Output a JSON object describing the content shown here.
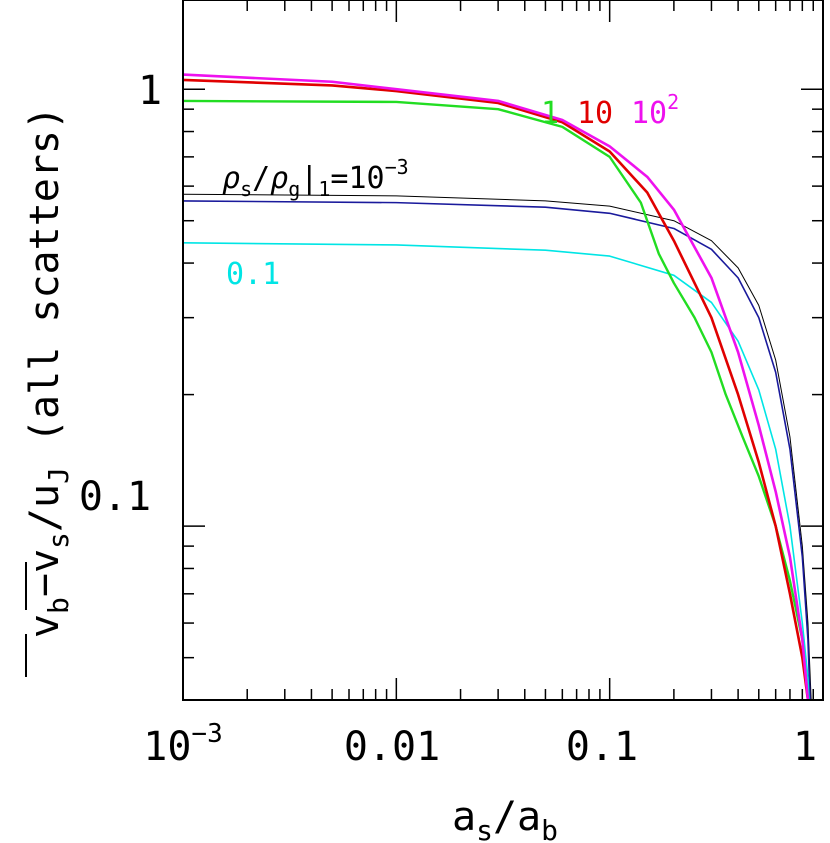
{
  "chart_data": {
    "type": "line",
    "title": "",
    "xlabel": "a_s/a_b",
    "ylabel": "v_b − v_s / u_J (all scatters)",
    "xscale": "log",
    "yscale": "log",
    "xlim": [
      0.001,
      1
    ],
    "ylim": [
      0.04,
      1.6
    ],
    "x_ticks": [
      {
        "value": 0.001,
        "base": "10",
        "exp": "−3"
      },
      {
        "value": 0.01,
        "label": "0.01"
      },
      {
        "value": 0.1,
        "label": "0.1"
      },
      {
        "value": 1,
        "label": "1"
      }
    ],
    "y_ticks": [
      {
        "value": 1,
        "label": "1"
      },
      {
        "value": 0.1,
        "label": "0.1"
      }
    ],
    "y_axis_label": {
      "v_b": "v",
      "b_sub": "b",
      "minus": "−",
      "v_s": "v",
      "s_sub": "s",
      "slash": "/",
      "u": "u",
      "J_sub": "J",
      "paren": "(all scatters)"
    },
    "x_axis_label": {
      "a1": "a",
      "s_sub": "s",
      "slash": "/",
      "a2": "a",
      "b_sub": "b"
    },
    "annotations": {
      "rho_label": {
        "rho1": "ρ",
        "s": "s",
        "slash": "/",
        "rho2": "ρ",
        "g": "g",
        "bar": "|",
        "one": "1",
        "eq": "=",
        "base": "10",
        "exp": "−3"
      },
      "cyan_label": "0.1",
      "green_label": "1",
      "red_label": "10",
      "magenta_base": "10",
      "magenta_exp": "2"
    },
    "series": [
      {
        "key": "black",
        "color": "#000000",
        "width": 1,
        "points": [
          [
            0.001,
            0.575
          ],
          [
            0.01,
            0.57
          ],
          [
            0.05,
            0.555
          ],
          [
            0.1,
            0.54
          ],
          [
            0.2,
            0.5
          ],
          [
            0.3,
            0.45
          ],
          [
            0.4,
            0.39
          ],
          [
            0.5,
            0.32
          ],
          [
            0.6,
            0.24
          ],
          [
            0.7,
            0.16
          ],
          [
            0.8,
            0.09
          ],
          [
            0.85,
            0.06
          ],
          [
            0.88,
            0.04
          ]
        ]
      },
      {
        "key": "blue",
        "color": "#1a1a9c",
        "width": 1.6,
        "points": [
          [
            0.001,
            0.555
          ],
          [
            0.01,
            0.55
          ],
          [
            0.05,
            0.537
          ],
          [
            0.1,
            0.52
          ],
          [
            0.2,
            0.48
          ],
          [
            0.3,
            0.43
          ],
          [
            0.4,
            0.37
          ],
          [
            0.5,
            0.3
          ],
          [
            0.6,
            0.225
          ],
          [
            0.7,
            0.15
          ],
          [
            0.8,
            0.085
          ],
          [
            0.85,
            0.055
          ],
          [
            0.87,
            0.04
          ]
        ]
      },
      {
        "key": "cyan",
        "color": "#00e5e5",
        "width": 1.6,
        "points": [
          [
            0.001,
            0.445
          ],
          [
            0.01,
            0.44
          ],
          [
            0.05,
            0.428
          ],
          [
            0.1,
            0.415
          ],
          [
            0.2,
            0.375
          ],
          [
            0.3,
            0.325
          ],
          [
            0.4,
            0.265
          ],
          [
            0.5,
            0.205
          ],
          [
            0.6,
            0.15
          ],
          [
            0.7,
            0.1
          ],
          [
            0.8,
            0.06
          ],
          [
            0.85,
            0.045
          ],
          [
            0.86,
            0.04
          ]
        ]
      },
      {
        "key": "green",
        "color": "#22dd22",
        "width": 2.4,
        "points": [
          [
            0.001,
            0.94
          ],
          [
            0.01,
            0.935
          ],
          [
            0.03,
            0.9
          ],
          [
            0.06,
            0.82
          ],
          [
            0.1,
            0.7
          ],
          [
            0.14,
            0.55
          ],
          [
            0.17,
            0.42
          ],
          [
            0.2,
            0.36
          ],
          [
            0.25,
            0.3
          ],
          [
            0.3,
            0.25
          ],
          [
            0.35,
            0.2
          ],
          [
            0.42,
            0.16
          ],
          [
            0.5,
            0.13
          ],
          [
            0.6,
            0.1
          ],
          [
            0.7,
            0.075
          ],
          [
            0.8,
            0.055
          ],
          [
            0.85,
            0.04
          ]
        ]
      },
      {
        "key": "red",
        "color": "#e00000",
        "width": 2.6,
        "points": [
          [
            0.001,
            1.05
          ],
          [
            0.005,
            1.02
          ],
          [
            0.01,
            0.99
          ],
          [
            0.03,
            0.93
          ],
          [
            0.06,
            0.84
          ],
          [
            0.1,
            0.72
          ],
          [
            0.15,
            0.58
          ],
          [
            0.2,
            0.45
          ],
          [
            0.3,
            0.3
          ],
          [
            0.4,
            0.2
          ],
          [
            0.5,
            0.14
          ],
          [
            0.6,
            0.1
          ],
          [
            0.7,
            0.07
          ],
          [
            0.8,
            0.05
          ],
          [
            0.85,
            0.04
          ]
        ]
      },
      {
        "key": "magenta",
        "color": "#ee11ee",
        "width": 2.6,
        "points": [
          [
            0.001,
            1.08
          ],
          [
            0.005,
            1.04
          ],
          [
            0.01,
            1.0
          ],
          [
            0.03,
            0.94
          ],
          [
            0.06,
            0.85
          ],
          [
            0.1,
            0.74
          ],
          [
            0.15,
            0.63
          ],
          [
            0.2,
            0.53
          ],
          [
            0.3,
            0.37
          ],
          [
            0.4,
            0.25
          ],
          [
            0.5,
            0.17
          ],
          [
            0.6,
            0.12
          ],
          [
            0.7,
            0.085
          ],
          [
            0.8,
            0.055
          ],
          [
            0.85,
            0.04
          ]
        ]
      }
    ]
  }
}
